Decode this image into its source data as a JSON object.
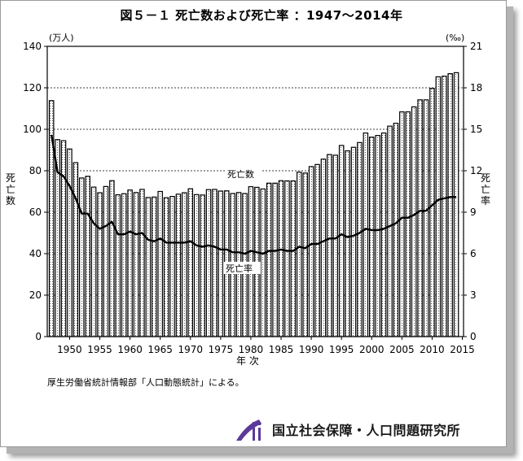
{
  "title": "図５－１ 死亡数および死亡率 ：1947～2014年",
  "source_note": "厚生労働省統計情報部「人口動態統計」による。",
  "logo_text": "国立社会保障・人口問題研究所",
  "colors": {
    "bar": "#555555",
    "line": "#000000",
    "frame": "#9a9a9a"
  },
  "chart_data": {
    "type": "bar",
    "title": "死亡数および死亡率",
    "grid": "horizontal dashed",
    "x": [
      1947,
      1948,
      1949,
      1950,
      1951,
      1952,
      1953,
      1954,
      1955,
      1956,
      1957,
      1958,
      1959,
      1960,
      1961,
      1962,
      1963,
      1964,
      1965,
      1966,
      1967,
      1968,
      1969,
      1970,
      1971,
      1972,
      1973,
      1974,
      1975,
      1976,
      1977,
      1978,
      1979,
      1980,
      1981,
      1982,
      1983,
      1984,
      1985,
      1986,
      1987,
      1988,
      1989,
      1990,
      1991,
      1992,
      1993,
      1994,
      1995,
      1996,
      1997,
      1998,
      1999,
      2000,
      2001,
      2002,
      2003,
      2004,
      2005,
      2006,
      2007,
      2008,
      2009,
      2010,
      2011,
      2012,
      2013,
      2014
    ],
    "x_ticks": [
      1950,
      1955,
      1960,
      1965,
      1970,
      1975,
      1980,
      1985,
      1990,
      1995,
      2000,
      2005,
      2010,
      2015
    ],
    "xlabel": "年 次",
    "ylabel_left": "死亡数",
    "ylabel_right": "死亡率",
    "left_unit": "(万人)",
    "right_unit": "(‰)",
    "ylim_left": [
      0,
      140
    ],
    "yticks_left": [
      0,
      20,
      40,
      60,
      80,
      100,
      120,
      140
    ],
    "ylim_right": [
      0,
      21
    ],
    "yticks_right": [
      0,
      3,
      6,
      9,
      12,
      15,
      18,
      21
    ],
    "series": [
      {
        "name": "死亡数",
        "axis": "left",
        "type": "bar",
        "values": [
          113.8,
          95.0,
          94.5,
          90.5,
          83.9,
          76.5,
          77.3,
          72.1,
          69.4,
          72.4,
          75.2,
          68.4,
          68.9,
          70.7,
          69.5,
          71.0,
          67.1,
          67.3,
          70.0,
          67.0,
          67.6,
          68.7,
          69.4,
          71.3,
          68.5,
          68.3,
          70.9,
          71.0,
          70.2,
          70.3,
          69.0,
          69.5,
          69.0,
          72.3,
          72.0,
          71.2,
          74.0,
          74.0,
          75.2,
          75.1,
          75.1,
          79.3,
          78.9,
          82.0,
          83.0,
          85.6,
          87.8,
          87.5,
          92.2,
          89.6,
          91.3,
          93.6,
          98.2,
          96.2,
          97.0,
          98.2,
          101.5,
          102.9,
          108.4,
          108.4,
          110.8,
          114.2,
          114.2,
          119.7,
          125.3,
          125.6,
          126.8,
          127.3
        ]
      },
      {
        "name": "死亡率",
        "axis": "right",
        "type": "line",
        "values": [
          14.6,
          11.9,
          11.6,
          10.9,
          10.0,
          8.9,
          8.9,
          8.2,
          7.8,
          8.0,
          8.3,
          7.4,
          7.4,
          7.6,
          7.4,
          7.5,
          7.0,
          6.9,
          7.1,
          6.8,
          6.8,
          6.8,
          6.8,
          6.9,
          6.6,
          6.5,
          6.6,
          6.5,
          6.3,
          6.3,
          6.1,
          6.1,
          6.0,
          6.2,
          6.1,
          6.0,
          6.2,
          6.2,
          6.3,
          6.2,
          6.2,
          6.5,
          6.4,
          6.7,
          6.7,
          6.9,
          7.1,
          7.1,
          7.4,
          7.2,
          7.3,
          7.5,
          7.8,
          7.7,
          7.7,
          7.8,
          8.0,
          8.2,
          8.6,
          8.6,
          8.8,
          9.1,
          9.1,
          9.5,
          9.9,
          10.0,
          10.1,
          10.1
        ]
      }
    ],
    "annotations": [
      "死亡数",
      "死亡率"
    ]
  }
}
